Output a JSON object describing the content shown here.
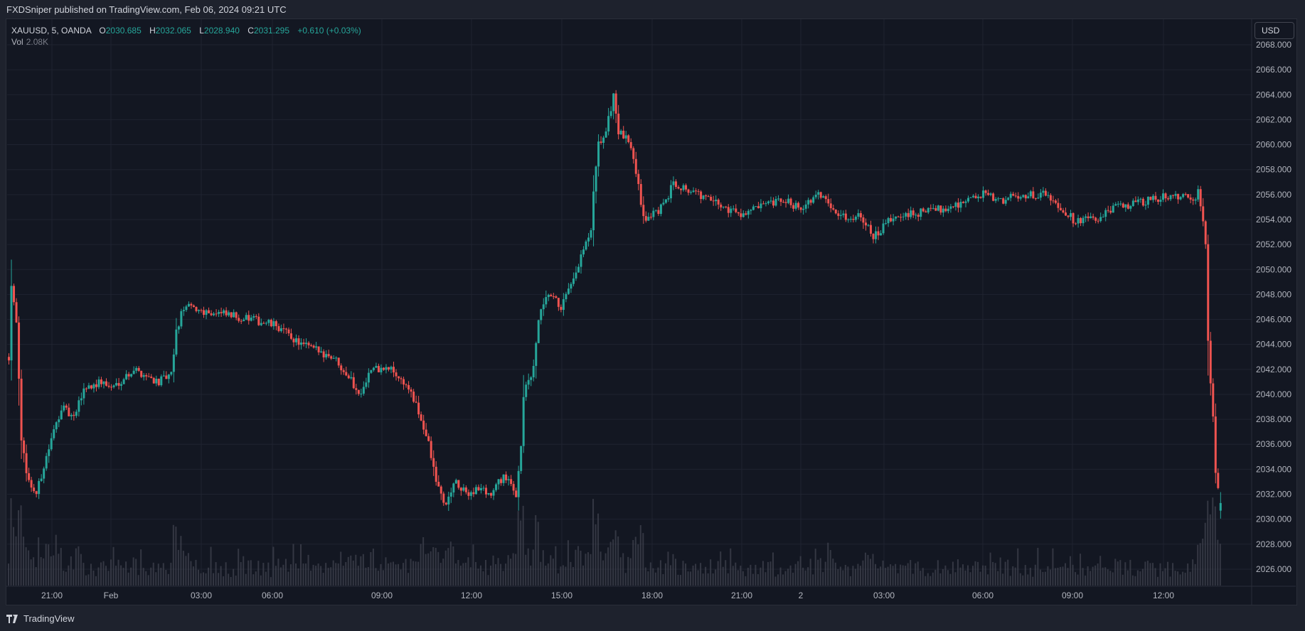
{
  "header": {
    "published": "FXDSniper published on TradingView.com, Feb 06, 2024 09:21 UTC"
  },
  "legend": {
    "symbol": "XAUUSD, 5, OANDA",
    "o_label": "O",
    "o": "2030.685",
    "h_label": "H",
    "h": "2032.065",
    "l_label": "L",
    "l": "2028.940",
    "c_label": "C",
    "c": "2031.295",
    "change": "+0.610 (+0.03%)",
    "vol_label": "Vol",
    "vol": "2.08K"
  },
  "currency_button": "USD",
  "brand": "TradingView",
  "colors": {
    "up": "#26a69a",
    "down": "#ef5350",
    "background": "#131722",
    "grid": "#1f2330",
    "volume": "#434651"
  },
  "chart_data": {
    "type": "candlestick",
    "interval": "5",
    "symbol": "XAUUSD",
    "ylim": [
      2025,
      2068.8
    ],
    "yticks": [
      "2026.000",
      "2028.000",
      "2030.000",
      "2032.000",
      "2034.000",
      "2036.000",
      "2038.000",
      "2040.000",
      "2042.000",
      "2044.000",
      "2046.000",
      "2048.000",
      "2050.000",
      "2052.000",
      "2054.000",
      "2056.000",
      "2058.000",
      "2060.000",
      "2062.000",
      "2064.000",
      "2066.000",
      "2068.000"
    ],
    "xticks": [
      "21:00",
      "Feb",
      "03:00",
      "06:00",
      "09:00",
      "12:00",
      "15:00",
      "18:00",
      "21:00",
      "2",
      "03:00",
      "06:00",
      "09:00",
      "12:00"
    ],
    "grid": true,
    "approx_close_path": [
      [
        "01-31 19:35",
        2043
      ],
      [
        "01-31 19:40",
        2049
      ],
      [
        "01-31 19:50",
        2046
      ],
      [
        "01-31 20:00",
        2036
      ],
      [
        "01-31 20:15",
        2033
      ],
      [
        "01-31 20:30",
        2032
      ],
      [
        "01-31 20:50",
        2035
      ],
      [
        "01-31 21:05",
        2037
      ],
      [
        "01-31 21:20",
        2039
      ],
      [
        "01-31 21:45",
        2038
      ],
      [
        "01-31 23:05",
        2040.5
      ],
      [
        "01-31 23:40",
        2041
      ],
      [
        "02-01 00:00",
        2040.5
      ],
      [
        "02-01 00:45",
        2042
      ],
      [
        "02-01 01:35",
        2041
      ],
      [
        "02-01 02:00",
        2041.5
      ],
      [
        "02-01 02:10",
        2045
      ],
      [
        "02-01 02:25",
        2047
      ],
      [
        "02-01 03:30",
        2046.5
      ],
      [
        "02-01 04:40",
        2046
      ],
      [
        "02-01 05:30",
        2045.5
      ],
      [
        "02-01 06:20",
        2044
      ],
      [
        "02-01 07:25",
        2043
      ],
      [
        "02-01 07:55",
        2041.5
      ],
      [
        "02-01 08:15",
        2040
      ],
      [
        "02-01 08:40",
        2042
      ],
      [
        "02-01 09:20",
        2042
      ],
      [
        "02-01 09:55",
        2040.5
      ],
      [
        "02-01 10:20",
        2038
      ],
      [
        "02-01 10:35",
        2036
      ],
      [
        "02-01 10:50",
        2033
      ],
      [
        "02-01 11:10",
        2031
      ],
      [
        "02-01 11:25",
        2033
      ],
      [
        "02-01 11:50",
        2032
      ],
      [
        "02-01 12:15",
        2032.5
      ],
      [
        "02-01 12:40",
        2032
      ],
      [
        "02-01 13:05",
        2033.5
      ],
      [
        "02-01 13:30",
        2032
      ],
      [
        "02-01 13:40",
        2036
      ],
      [
        "02-01 13:45",
        2040
      ],
      [
        "02-01 14:05",
        2042
      ],
      [
        "02-01 14:15",
        2046
      ],
      [
        "02-01 14:35",
        2048
      ],
      [
        "02-01 15:00",
        2047
      ],
      [
        "02-01 15:25",
        2049
      ],
      [
        "02-01 15:40",
        2051
      ],
      [
        "02-01 16:00",
        2053
      ],
      [
        "02-01 16:05",
        2056
      ],
      [
        "02-01 16:15",
        2060
      ],
      [
        "02-01 16:30",
        2061
      ],
      [
        "02-01 16:45",
        2064
      ],
      [
        "02-01 16:55",
        2061
      ],
      [
        "02-01 17:20",
        2060
      ],
      [
        "02-01 17:35",
        2057
      ],
      [
        "02-01 17:45",
        2054
      ],
      [
        "02-01 18:25",
        2055
      ],
      [
        "02-01 18:45",
        2057
      ],
      [
        "02-01 19:35",
        2056
      ],
      [
        "02-01 20:25",
        2055
      ],
      [
        "02-01 21:00",
        2054.5
      ],
      [
        "02-01 23:25",
        2055.5
      ],
      [
        "02-02 00:00",
        2055
      ],
      [
        "02-02 00:40",
        2056
      ],
      [
        "02-02 01:05",
        2055
      ],
      [
        "02-02 01:30",
        2054
      ],
      [
        "02-02 02:00",
        2054.5
      ],
      [
        "02-02 02:25",
        2052.5
      ],
      [
        "02-02 03:00",
        2054
      ],
      [
        "02-02 03:50",
        2054.5
      ],
      [
        "02-02 04:55",
        2055
      ],
      [
        "02-02 06:05",
        2056
      ],
      [
        "02-02 06:35",
        2055.5
      ],
      [
        "02-02 07:25",
        2056
      ],
      [
        "02-02 08:15",
        2056
      ],
      [
        "02-02 09:05",
        2054
      ],
      [
        "02-02 09:55",
        2054
      ],
      [
        "02-02 10:30",
        2055
      ],
      [
        "02-02 11:35",
        2055.5
      ],
      [
        "02-02 12:25",
        2056
      ],
      [
        "02-02 13:10",
        2055.5
      ],
      [
        "02-02 13:15",
        2056.5
      ],
      [
        "02-02 13:25",
        2054
      ],
      [
        "02-02 13:30",
        2052
      ],
      [
        "02-02 13:35",
        2044
      ],
      [
        "02-02 13:45",
        2038
      ],
      [
        "02-02 13:50",
        2034
      ],
      [
        "02-02 14:00",
        2031.3
      ]
    ]
  }
}
